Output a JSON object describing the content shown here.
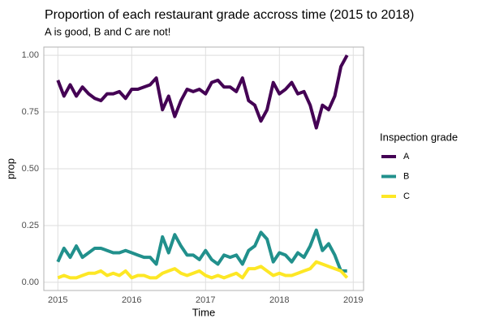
{
  "chart_data": {
    "type": "line",
    "title": "Proportion of each restaurant grade accross time (2015 to 2018)",
    "subtitle": "A is good, B and C are not!",
    "x_label": "Time",
    "y_label": "prop",
    "legend_title": "Inspection grade",
    "x": [
      2015,
      2015.083,
      2015.167,
      2015.25,
      2015.333,
      2015.417,
      2015.5,
      2015.583,
      2015.667,
      2015.75,
      2015.833,
      2015.917,
      2016,
      2016.083,
      2016.167,
      2016.25,
      2016.333,
      2016.417,
      2016.5,
      2016.583,
      2016.667,
      2016.75,
      2016.833,
      2016.917,
      2017,
      2017.083,
      2017.167,
      2017.25,
      2017.333,
      2017.417,
      2017.5,
      2017.583,
      2017.667,
      2017.75,
      2017.833,
      2017.917,
      2018,
      2018.083,
      2018.167,
      2018.25,
      2018.333,
      2018.417,
      2018.5,
      2018.583,
      2018.667,
      2018.75,
      2018.833,
      2018.917
    ],
    "series": [
      {
        "name": "A",
        "color": "#440154",
        "values": [
          0.89,
          0.82,
          0.87,
          0.82,
          0.86,
          0.83,
          0.81,
          0.8,
          0.83,
          0.83,
          0.84,
          0.81,
          0.85,
          0.85,
          0.86,
          0.87,
          0.9,
          0.76,
          0.82,
          0.73,
          0.8,
          0.85,
          0.84,
          0.85,
          0.83,
          0.88,
          0.89,
          0.86,
          0.86,
          0.84,
          0.9,
          0.8,
          0.78,
          0.71,
          0.76,
          0.88,
          0.83,
          0.85,
          0.88,
          0.83,
          0.84,
          0.78,
          0.68,
          0.78,
          0.76,
          0.82,
          0.95,
          1.0
        ]
      },
      {
        "name": "B",
        "color": "#21908C",
        "values": [
          0.09,
          0.15,
          0.11,
          0.16,
          0.11,
          0.13,
          0.15,
          0.15,
          0.14,
          0.13,
          0.13,
          0.14,
          0.13,
          0.12,
          0.11,
          0.11,
          0.08,
          0.2,
          0.13,
          0.21,
          0.16,
          0.12,
          0.12,
          0.1,
          0.14,
          0.1,
          0.08,
          0.12,
          0.11,
          0.12,
          0.08,
          0.14,
          0.16,
          0.22,
          0.19,
          0.09,
          0.13,
          0.12,
          0.09,
          0.13,
          0.11,
          0.16,
          0.23,
          0.14,
          0.17,
          0.12,
          0.05,
          0.05
        ]
      },
      {
        "name": "C",
        "color": "#FDE725",
        "values": [
          0.02,
          0.03,
          0.02,
          0.02,
          0.03,
          0.04,
          0.04,
          0.05,
          0.03,
          0.04,
          0.03,
          0.05,
          0.02,
          0.03,
          0.03,
          0.02,
          0.02,
          0.04,
          0.05,
          0.06,
          0.04,
          0.03,
          0.04,
          0.05,
          0.03,
          0.02,
          0.03,
          0.02,
          0.03,
          0.04,
          0.02,
          0.06,
          0.06,
          0.07,
          0.05,
          0.03,
          0.04,
          0.03,
          0.03,
          0.04,
          0.05,
          0.06,
          0.09,
          0.08,
          0.07,
          0.06,
          0.05,
          0.02
        ]
      }
    ],
    "xlim": [
      2014.81,
      2019.14
    ],
    "xticks": [
      2015,
      2016,
      2017,
      2018,
      2019
    ],
    "ylim": [
      -0.036,
      1.036
    ],
    "yticks": [
      {
        "value": 0,
        "label": "0.00"
      },
      {
        "value": 0.25,
        "label": "0.25"
      },
      {
        "value": 0.5,
        "label": "0.50"
      },
      {
        "value": 0.75,
        "label": "0.75"
      },
      {
        "value": 1,
        "label": "1.00"
      }
    ],
    "grid": true
  }
}
